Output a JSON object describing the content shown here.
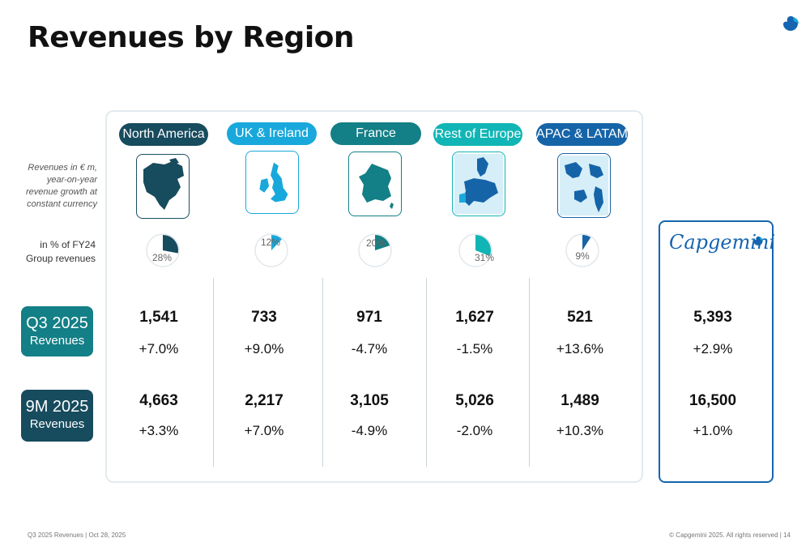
{
  "title": "Revenues by Region",
  "side_note": "Revenues in € m, year-on-year revenue growth at constant currency",
  "pct_label_line1": "in % of FY24",
  "pct_label_line2": "Group revenues",
  "colors": {
    "north_america": "#174b5e",
    "uk_ireland": "#19a8dc",
    "france": "#137f86",
    "rest_of_europe": "#12b5b5",
    "apac_latam": "#1664a8",
    "brand": "#1565b0",
    "q3_badge": "#137f86",
    "nm_badge": "#174b5e"
  },
  "regions": [
    {
      "name": "North America",
      "icon": "north-america-map-icon",
      "share": 28,
      "share_label": "28%",
      "q3_value": "1,541",
      "q3_growth": "+7.0%",
      "nm_value": "4,663",
      "nm_growth": "+3.3%"
    },
    {
      "name": "UK & Ireland",
      "icon": "uk-ireland-map-icon",
      "share": 12,
      "share_label": "12%",
      "q3_value": "733",
      "q3_growth": "+9.0%",
      "nm_value": "2,217",
      "nm_growth": "+7.0%"
    },
    {
      "name": "France",
      "icon": "france-map-icon",
      "share": 20,
      "share_label": "20%",
      "q3_value": "971",
      "q3_growth": "-4.7%",
      "nm_value": "3,105",
      "nm_growth": "-4.9%"
    },
    {
      "name": "Rest of Europe",
      "icon": "europe-map-icon",
      "share": 31,
      "share_label": "31%",
      "q3_value": "1,627",
      "q3_growth": "-1.5%",
      "nm_value": "5,026",
      "nm_growth": "-2.0%"
    },
    {
      "name": "APAC & LATAM",
      "icon": "apac-latam-map-icon",
      "share": 9,
      "share_label": "9%",
      "q3_value": "521",
      "q3_growth": "+13.6%",
      "nm_value": "1,489",
      "nm_growth": "+10.3%"
    }
  ],
  "group": {
    "brand": "Capgemini",
    "icon": "capgemini-spade-icon",
    "q3_value": "5,393",
    "q3_growth": "+2.9%",
    "nm_value": "16,500",
    "nm_growth": "+1.0%"
  },
  "rows": {
    "q3": {
      "period": "Q3 2025",
      "label": "Revenues"
    },
    "nm": {
      "period": "9M 2025",
      "label": "Revenues"
    }
  },
  "footer": {
    "left": "Q3 2025 Revenues  |  Oct 28, 2025",
    "right": "© Capgemini 2025. All rights reserved  |     14"
  }
}
